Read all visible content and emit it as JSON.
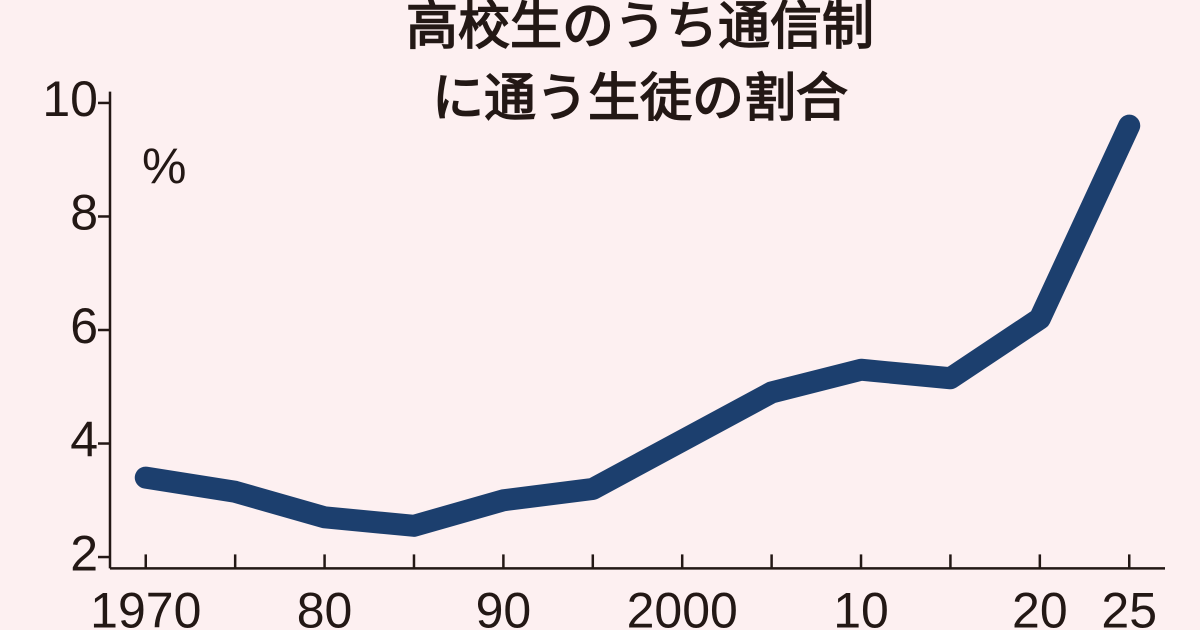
{
  "chart_data": {
    "type": "line",
    "title": [
      "高校生のうち通信制",
      "に通う生徒の割合"
    ],
    "y_unit": "%",
    "x": [
      1970,
      1975,
      1980,
      1985,
      1990,
      1995,
      2000,
      2005,
      2010,
      2015,
      2020,
      2025
    ],
    "series": [
      {
        "color": "#1c3f6e",
        "values": [
          3.4,
          3.15,
          2.7,
          2.55,
          3.0,
          3.2,
          4.05,
          4.9,
          5.3,
          5.15,
          6.2,
          9.6
        ]
      }
    ],
    "xlim": [
      1968,
      2027
    ],
    "xticks": [
      1970,
      {
        "value": 1980,
        "label": "80"
      },
      {
        "value": 1990,
        "label": "90"
      },
      2000,
      {
        "value": 2010,
        "label": "10"
      },
      {
        "value": 2020,
        "label": "20"
      },
      {
        "value": 2025,
        "label": "25"
      }
    ],
    "xminor_ticks": [
      1975,
      1985,
      1995,
      2005,
      2015
    ],
    "ylim": [
      1.8,
      10.2
    ],
    "yticks": [
      2,
      4,
      6,
      8,
      10
    ]
  }
}
